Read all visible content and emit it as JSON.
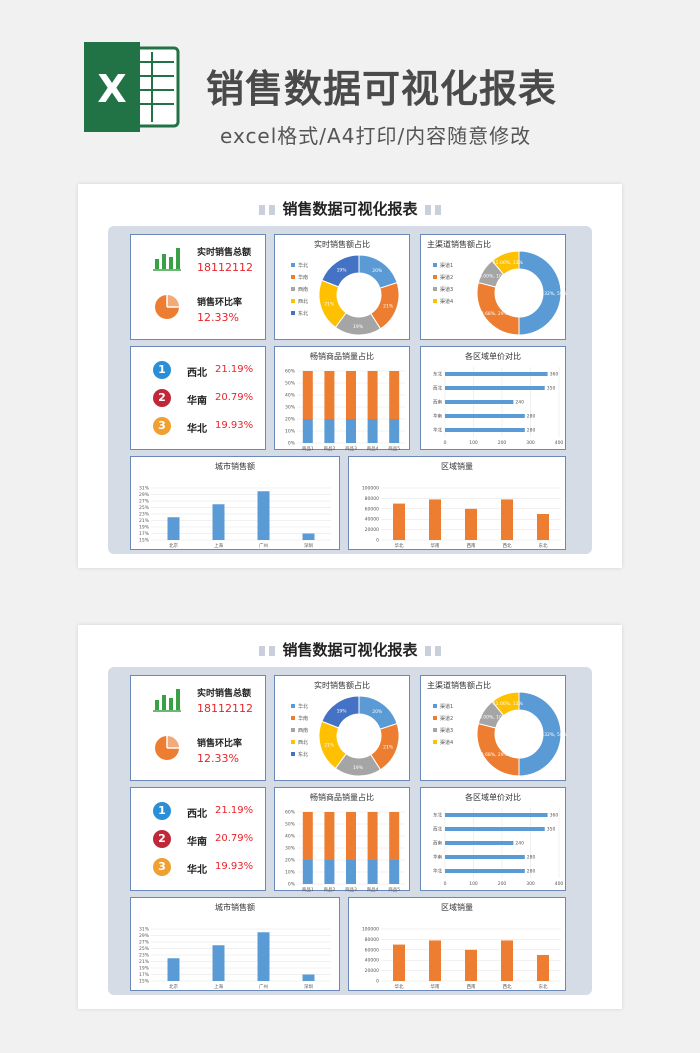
{
  "header": {
    "title": "销售数据可视化报表",
    "subtitle": "excel格式/A4打印/内容随意修改",
    "logo_letter": "X"
  },
  "sheet": {
    "title": "销售数据可视化报表"
  },
  "kpis": {
    "total_label": "实时销售总额",
    "total_value": "18112112",
    "ratio_label": "销售环比率",
    "ratio_value": "12.33%"
  },
  "ranking": [
    {
      "rank": "1",
      "name": "西北",
      "value": "21.19%",
      "color": "#2a8fd6"
    },
    {
      "rank": "2",
      "name": "华南",
      "value": "20.79%",
      "color": "#c0283a"
    },
    {
      "rank": "3",
      "name": "华北",
      "value": "19.93%",
      "color": "#f0a030"
    }
  ],
  "colors": {
    "blue": "#5b9bd5",
    "orange": "#ed7d31",
    "gray": "#a5a5a5",
    "yellow": "#ffc000",
    "darkblue": "#4472c4",
    "red": "#e8242b",
    "green": "#3aa046"
  },
  "chart_data": [
    {
      "id": "realtime",
      "type": "pie",
      "title": "实时销售额占比",
      "labels": [
        "华北",
        "华南",
        "西南",
        "西北",
        "东北"
      ],
      "values": [
        20,
        21,
        19,
        21,
        19
      ],
      "data_labels": [
        "20%",
        "21%",
        "19%",
        "21%",
        "19%"
      ],
      "colors": [
        "#5b9bd5",
        "#ed7d31",
        "#a5a5a5",
        "#ffc000",
        "#4472c4"
      ]
    },
    {
      "id": "channel",
      "type": "pie",
      "title": "主渠道销售额占比",
      "labels": [
        "渠道1",
        "渠道2",
        "渠道3",
        "渠道4"
      ],
      "values": [
        50,
        29,
        10,
        11
      ],
      "data_labels": [
        "50.32%, 50%",
        "28.68%, 29%",
        "10.00%, 10%",
        "11.00%, 11%"
      ],
      "colors": [
        "#5b9bd5",
        "#ed7d31",
        "#a5a5a5",
        "#ffc000"
      ]
    },
    {
      "id": "hot",
      "type": "bar",
      "title": "畅销商品销量占比",
      "categories": [
        "商品1",
        "商品2",
        "商品3",
        "商品4",
        "商品5"
      ],
      "series": [
        {
          "values": [
            20,
            20,
            20,
            20,
            20
          ],
          "color": "#5b9bd5"
        },
        {
          "values": [
            40,
            40,
            40,
            40,
            40
          ],
          "color": "#ed7d31"
        }
      ],
      "yticks": [
        "0%",
        "10%",
        "20%",
        "30%",
        "40%",
        "50%",
        "60%"
      ],
      "ylim": [
        0,
        60
      ]
    },
    {
      "id": "price",
      "type": "bar",
      "title": "各区域单价对比",
      "categories": [
        "东北",
        "西北",
        "西南",
        "华南",
        "华北"
      ],
      "values": [
        360,
        350,
        240,
        280,
        280
      ],
      "xticks": [
        "0",
        "100",
        "200",
        "300",
        "400"
      ],
      "xlim": [
        0,
        400
      ]
    },
    {
      "id": "city",
      "type": "bar",
      "title": "城市销售额",
      "categories": [
        "北京",
        "上海",
        "广州",
        "深圳"
      ],
      "values": [
        22,
        26,
        30,
        17
      ],
      "yticks": [
        "15%",
        "17%",
        "19%",
        "21%",
        "23%",
        "25%",
        "27%",
        "29%",
        "31%"
      ],
      "ylim": [
        15,
        31
      ]
    },
    {
      "id": "region",
      "type": "bar",
      "title": "区域销量",
      "categories": [
        "华北",
        "华南",
        "西南",
        "西北",
        "东北"
      ],
      "values": [
        70000,
        78000,
        60000,
        78000,
        50000
      ],
      "yticks": [
        "0",
        "20000",
        "40000",
        "60000",
        "80000",
        "100000"
      ],
      "ylim": [
        0,
        100000
      ]
    }
  ]
}
